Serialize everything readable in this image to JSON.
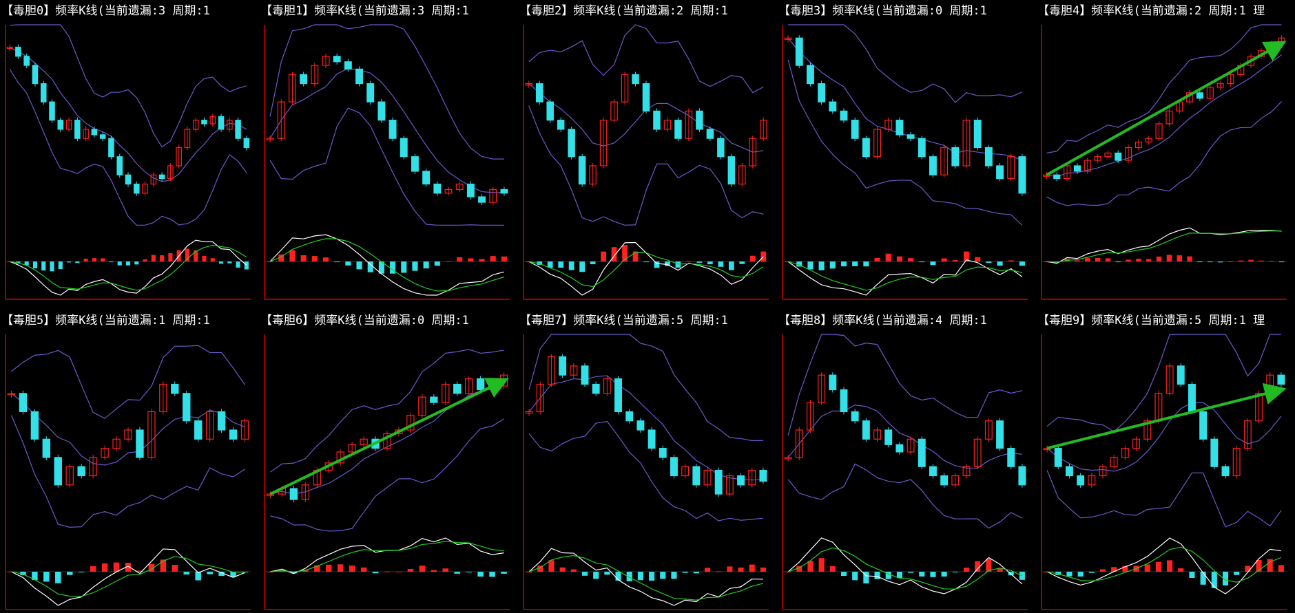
{
  "ylim": [
    0,
    100
  ],
  "panels": [
    {
      "title": "【毒胆0】频率K线(当前遗漏:3 周期:1",
      "values": [
        90,
        85,
        80,
        70,
        60,
        50,
        45,
        50,
        40,
        45,
        42,
        40,
        30,
        20,
        15,
        10,
        15,
        20,
        18,
        25,
        35,
        45,
        50,
        48,
        52,
        45,
        50,
        40,
        35
      ],
      "arrow": false
    },
    {
      "title": "【毒胆1】频率K线(当前遗漏:3 周期:1",
      "values": [
        40,
        60,
        75,
        70,
        80,
        85,
        82,
        78,
        70,
        60,
        50,
        40,
        30,
        22,
        15,
        10,
        12,
        15,
        8,
        5,
        12,
        10
      ],
      "arrow": false
    },
    {
      "title": "【毒胆2】频率K线(当前遗漏:2 周期:1",
      "values": [
        70,
        60,
        50,
        45,
        30,
        15,
        25,
        50,
        60,
        75,
        70,
        55,
        45,
        50,
        40,
        55,
        45,
        40,
        30,
        15,
        25,
        40,
        50
      ],
      "arrow": false
    },
    {
      "title": "【毒胆3】频率K线(当前遗漏:0 周期:1",
      "values": [
        95,
        80,
        70,
        60,
        55,
        50,
        40,
        30,
        45,
        50,
        42,
        40,
        30,
        20,
        35,
        25,
        50,
        35,
        25,
        18,
        30,
        10
      ],
      "arrow": false
    },
    {
      "title": "【毒胆4】频率K线(当前遗漏:2 周期:1 理",
      "values": [
        20,
        18,
        25,
        22,
        28,
        30,
        32,
        28,
        35,
        38,
        40,
        48,
        55,
        60,
        65,
        62,
        68,
        70,
        75,
        80,
        85,
        88,
        92,
        95
      ],
      "arrow": true
    },
    {
      "title": "【毒胆5】频率K线(当前遗漏:1 周期:1",
      "values": [
        70,
        60,
        45,
        35,
        20,
        30,
        25,
        35,
        40,
        45,
        50,
        35,
        60,
        75,
        70,
        55,
        45,
        60,
        50,
        45,
        55
      ],
      "arrow": false
    },
    {
      "title": "【毒胆6】频率K线(当前遗漏:0 周期:1",
      "values": [
        15,
        18,
        12,
        20,
        28,
        32,
        38,
        42,
        45,
        40,
        48,
        50,
        58,
        68,
        65,
        75,
        70,
        78,
        72,
        74,
        80
      ],
      "arrow": true
    },
    {
      "title": "【毒胆7】频率K线(当前遗漏:5 周期:1",
      "values": [
        60,
        75,
        90,
        80,
        85,
        75,
        70,
        78,
        60,
        55,
        50,
        40,
        35,
        25,
        30,
        20,
        28,
        15,
        25,
        20,
        28,
        22
      ],
      "arrow": false
    },
    {
      "title": "【毒胆8】频率K线(当前遗漏:4 周期:1",
      "values": [
        35,
        50,
        65,
        80,
        72,
        60,
        55,
        45,
        50,
        42,
        38,
        45,
        30,
        25,
        20,
        25,
        30,
        45,
        55,
        40,
        30,
        20
      ],
      "arrow": false
    },
    {
      "title": "【毒胆9】频率K线(当前遗漏:5 周期:1 理",
      "values": [
        40,
        30,
        25,
        20,
        25,
        30,
        35,
        40,
        45,
        55,
        70,
        85,
        75,
        60,
        45,
        30,
        25,
        40,
        55,
        70,
        80,
        75
      ],
      "arrow": true
    }
  ]
}
